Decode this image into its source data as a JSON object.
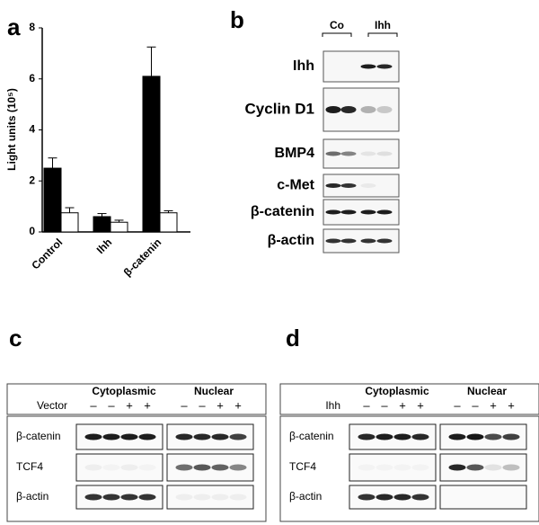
{
  "chart_data": {
    "type": "bar",
    "panel_label": "a",
    "y_label": "Light units (10⁵)",
    "categories": [
      "Control",
      "Ihh",
      "β-catenin"
    ],
    "series": [
      {
        "color": "#000000",
        "values": [
          2.5,
          0.6,
          6.1
        ],
        "errors": [
          0.4,
          0.12,
          1.15
        ]
      },
      {
        "color": "#ffffff",
        "values": [
          0.75,
          0.38,
          0.75
        ],
        "errors": [
          0.2,
          0.08,
          0.08
        ]
      }
    ],
    "ylim": [
      0,
      8
    ],
    "yticks": [
      0,
      2,
      4,
      6,
      8
    ]
  },
  "blot_b": {
    "panel_label": "b",
    "groups": [
      "Co",
      "Ihh"
    ],
    "rows": [
      "Ihh",
      "Cyclin D1",
      "BMP4",
      "c-Met",
      "β-catenin",
      "β-actin"
    ]
  },
  "blot_c": {
    "panel_label": "c",
    "headers": [
      "Cytoplasmic",
      "Nuclear"
    ],
    "condition": "Vector",
    "signs": [
      "–",
      "–",
      "+",
      "+",
      "–",
      "–",
      "+",
      "+"
    ],
    "rows": [
      "β-catenin",
      "TCF4",
      "β-actin"
    ]
  },
  "blot_d": {
    "panel_label": "d",
    "headers": [
      "Cytoplasmic",
      "Nuclear"
    ],
    "condition": "Ihh",
    "signs": [
      "–",
      "–",
      "+",
      "+",
      "–",
      "–",
      "+",
      "+"
    ],
    "rows": [
      "β-catenin",
      "TCF4",
      "β-actin"
    ]
  }
}
